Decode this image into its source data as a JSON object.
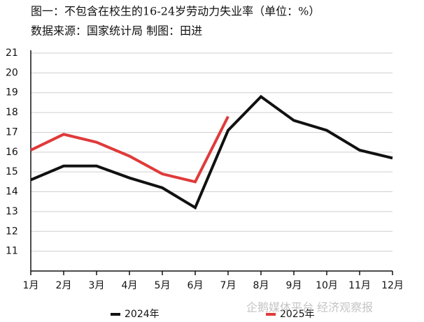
{
  "chart_data": {
    "type": "line",
    "title": "图一：不包含在校生的16-24岁劳动力失业率（单位：%）",
    "subtitle": "数据来源：国家统计局 制图：田进",
    "watermark": "企鹅媒体平台 经济观察报",
    "categories": [
      "1月",
      "2月",
      "3月",
      "4月",
      "5月",
      "6月",
      "7月",
      "8月",
      "9月",
      "10月",
      "11月",
      "12月"
    ],
    "series": [
      {
        "name": "2024年",
        "color": "#111111",
        "values": [
          14.6,
          15.3,
          15.3,
          14.7,
          14.2,
          13.2,
          17.1,
          18.8,
          17.6,
          17.1,
          16.1,
          15.7
        ]
      },
      {
        "name": "2025年",
        "color": "#e03a3a",
        "values": [
          16.1,
          16.9,
          16.5,
          15.8,
          14.9,
          14.5,
          17.8,
          null,
          null,
          null,
          null,
          null
        ]
      }
    ],
    "ylim": [
      10,
      21
    ],
    "yticks": [
      11,
      12,
      13,
      14,
      15,
      16,
      17,
      18,
      19,
      20,
      21
    ],
    "grid": true
  }
}
